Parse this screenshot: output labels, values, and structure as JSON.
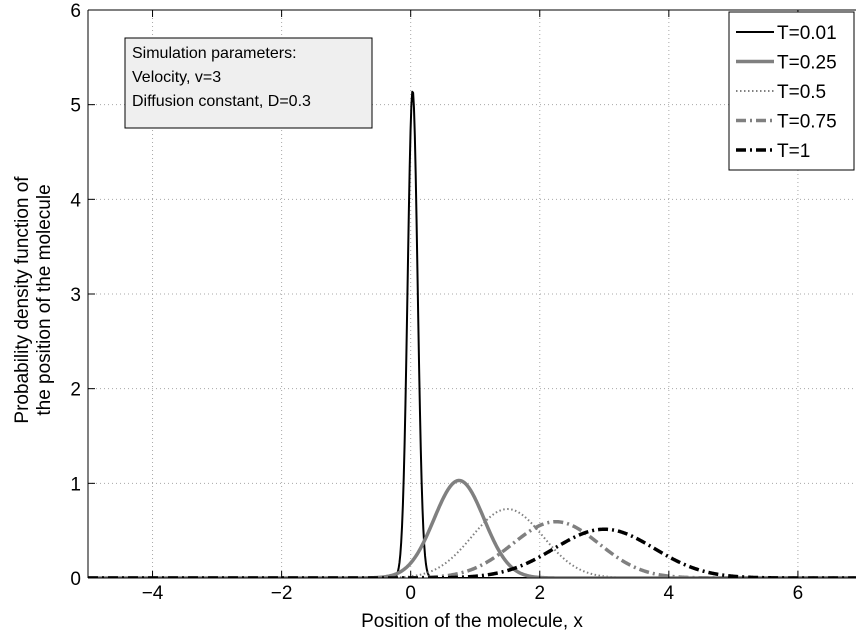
{
  "chart_data": {
    "type": "line",
    "xlabel": "Position of the molecule, x",
    "ylabel_lines": [
      "Probability density function of",
      "the position of the molecule"
    ],
    "xlim": [
      -5,
      6.9
    ],
    "ylim": [
      0,
      6
    ],
    "xticks": [
      -4,
      -2,
      0,
      2,
      4,
      6
    ],
    "xtick_labels": [
      "−4",
      "−2",
      "0",
      "2",
      "4",
      "6"
    ],
    "yticks": [
      0,
      1,
      2,
      3,
      4,
      5,
      6
    ],
    "ytick_labels": [
      "0",
      "1",
      "2",
      "3",
      "4",
      "5",
      "6"
    ],
    "grid": true,
    "legend_position": "top-right",
    "annotation": {
      "lines": [
        "Simulation parameters:",
        "Velocity, v=3",
        "Diffusion constant, D=0.3"
      ]
    },
    "parameters": {
      "velocity": 3,
      "diffusion_constant": 0.3
    },
    "series": [
      {
        "name": "T=0.01",
        "T": 0.01,
        "mean": 0.03,
        "variance": 0.006,
        "peak": 5.15,
        "color": "#000000",
        "dash": "solid",
        "width": 2,
        "x": [
          -0.2,
          -0.1,
          0.0,
          0.03,
          0.06,
          0.1,
          0.2,
          0.3
        ],
        "y": [
          0.0,
          0.1,
          4.79,
          5.15,
          4.79,
          3.33,
          0.09,
          0.0
        ]
      },
      {
        "name": "T=0.25",
        "T": 0.25,
        "mean": 0.75,
        "variance": 0.15,
        "peak": 1.03,
        "color": "#808080",
        "dash": "solid",
        "width": 3.5,
        "x": [
          -0.5,
          0.0,
          0.25,
          0.5,
          0.75,
          1.0,
          1.25,
          1.5,
          2.0,
          2.5
        ],
        "y": [
          0.01,
          0.16,
          0.45,
          0.84,
          1.03,
          0.84,
          0.45,
          0.16,
          0.01,
          0.0
        ]
      },
      {
        "name": "T=0.5",
        "T": 0.5,
        "mean": 1.5,
        "variance": 0.3,
        "peak": 0.73,
        "color": "#808080",
        "dash": "dotted",
        "width": 2,
        "x": [
          0.0,
          0.5,
          1.0,
          1.5,
          2.0,
          2.5,
          3.0,
          3.5
        ],
        "y": [
          0.02,
          0.14,
          0.48,
          0.73,
          0.48,
          0.14,
          0.02,
          0.0
        ]
      },
      {
        "name": "T=0.75",
        "T": 0.75,
        "mean": 2.25,
        "variance": 0.45,
        "peak": 0.59,
        "color": "#808080",
        "dash": "dashdot",
        "width": 3.5,
        "x": [
          0.0,
          0.75,
          1.5,
          2.25,
          3.0,
          3.75,
          4.5,
          5.0
        ],
        "y": [
          0.02,
          0.05,
          0.32,
          0.59,
          0.32,
          0.05,
          0.0,
          0.0
        ]
      },
      {
        "name": "T=1",
        "T": 1,
        "mean": 3.0,
        "variance": 0.6,
        "peak": 0.51,
        "color": "#000000",
        "dash": "dashdot",
        "width": 3.5,
        "x": [
          0.0,
          1.0,
          2.0,
          3.0,
          4.0,
          5.0,
          6.0
        ],
        "y": [
          0.0,
          0.02,
          0.22,
          0.51,
          0.22,
          0.02,
          0.0
        ]
      }
    ]
  }
}
